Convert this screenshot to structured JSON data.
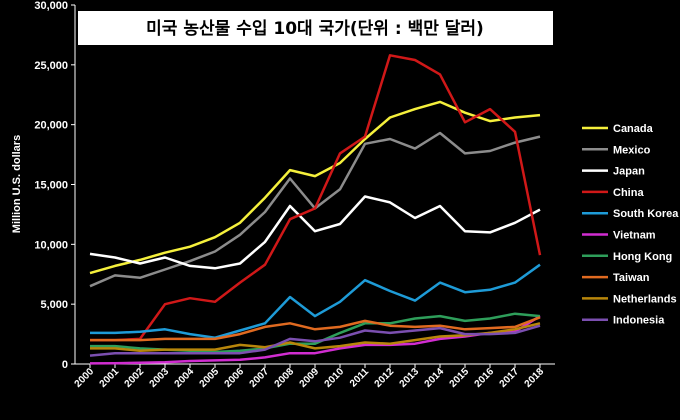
{
  "chart_data": {
    "type": "line",
    "title": "미국 농산물 수입 10대 국가(단위 : 백만 달러)",
    "ylabel": "Million U.S. dollars",
    "xlabel": "",
    "ylim": [
      0,
      30000
    ],
    "yticks": [
      "0",
      "5,000",
      "10,000",
      "15,000",
      "20,000",
      "25,000",
      "30,000"
    ],
    "grid": false,
    "legend_position": "right",
    "x": [
      "2000",
      "2001",
      "2002",
      "2003",
      "2004",
      "2005",
      "2006",
      "2007",
      "2008",
      "2009",
      "2010",
      "2011",
      "2012",
      "2013",
      "2014",
      "2015",
      "2016",
      "2017",
      "2018"
    ],
    "series": [
      {
        "name": "Canada",
        "color": "#f5f03c",
        "values": [
          7600,
          8200,
          8700,
          9300,
          9800,
          10600,
          11800,
          13900,
          16200,
          15700,
          16800,
          18800,
          20600,
          21300,
          21900,
          21000,
          20300,
          20600,
          20800
        ]
      },
      {
        "name": "Mexico",
        "color": "#8c8c8c",
        "values": [
          6500,
          7400,
          7200,
          7900,
          8600,
          9400,
          10800,
          12700,
          15500,
          13000,
          14600,
          18400,
          18800,
          18000,
          19300,
          17600,
          17800,
          18500,
          19000
        ]
      },
      {
        "name": "Japan",
        "color": "#ffffff",
        "values": [
          9200,
          8900,
          8400,
          8900,
          8200,
          8000,
          8400,
          10200,
          13200,
          11100,
          11700,
          14000,
          13500,
          12200,
          13200,
          11100,
          11000,
          11800,
          12900
        ]
      },
      {
        "name": "China",
        "color": "#d01818",
        "values": [
          2000,
          2000,
          2100,
          5000,
          5500,
          5200,
          6800,
          8300,
          12100,
          13000,
          17600,
          19000,
          25800,
          25400,
          24200,
          20200,
          21300,
          19400,
          9100
        ]
      },
      {
        "name": "South Korea",
        "color": "#1e9bd7",
        "values": [
          2600,
          2600,
          2700,
          2900,
          2500,
          2200,
          2800,
          3400,
          5600,
          4000,
          5200,
          7000,
          6100,
          5300,
          6800,
          6000,
          6200,
          6800,
          8300
        ]
      },
      {
        "name": "Vietnam",
        "color": "#d12dd1",
        "values": [
          50,
          60,
          100,
          150,
          250,
          300,
          350,
          550,
          900,
          900,
          1300,
          1600,
          1600,
          1700,
          2100,
          2300,
          2600,
          2700,
          4000
        ]
      },
      {
        "name": "Hong Kong",
        "color": "#2e9e5a",
        "values": [
          1500,
          1500,
          1300,
          1200,
          1100,
          1000,
          1100,
          1300,
          1700,
          1700,
          2600,
          3400,
          3400,
          3800,
          4000,
          3600,
          3800,
          4200,
          4000
        ]
      },
      {
        "name": "Taiwan",
        "color": "#e06a20",
        "values": [
          2000,
          2000,
          2000,
          2100,
          2100,
          2100,
          2500,
          3100,
          3400,
          2900,
          3100,
          3600,
          3200,
          3100,
          3200,
          2900,
          3000,
          3100,
          3900
        ]
      },
      {
        "name": "Netherlands",
        "color": "#b8860b",
        "values": [
          1300,
          1300,
          1100,
          1200,
          1200,
          1200,
          1600,
          1400,
          1800,
          1300,
          1500,
          1800,
          1700,
          2000,
          2300,
          2400,
          2600,
          2900,
          3400
        ]
      },
      {
        "name": "Indonesia",
        "color": "#7b4fb0",
        "values": [
          700,
          900,
          900,
          900,
          900,
          900,
          900,
          1200,
          2100,
          1900,
          2200,
          2800,
          2600,
          2800,
          3000,
          2500,
          2500,
          2600,
          3200
        ]
      }
    ]
  }
}
